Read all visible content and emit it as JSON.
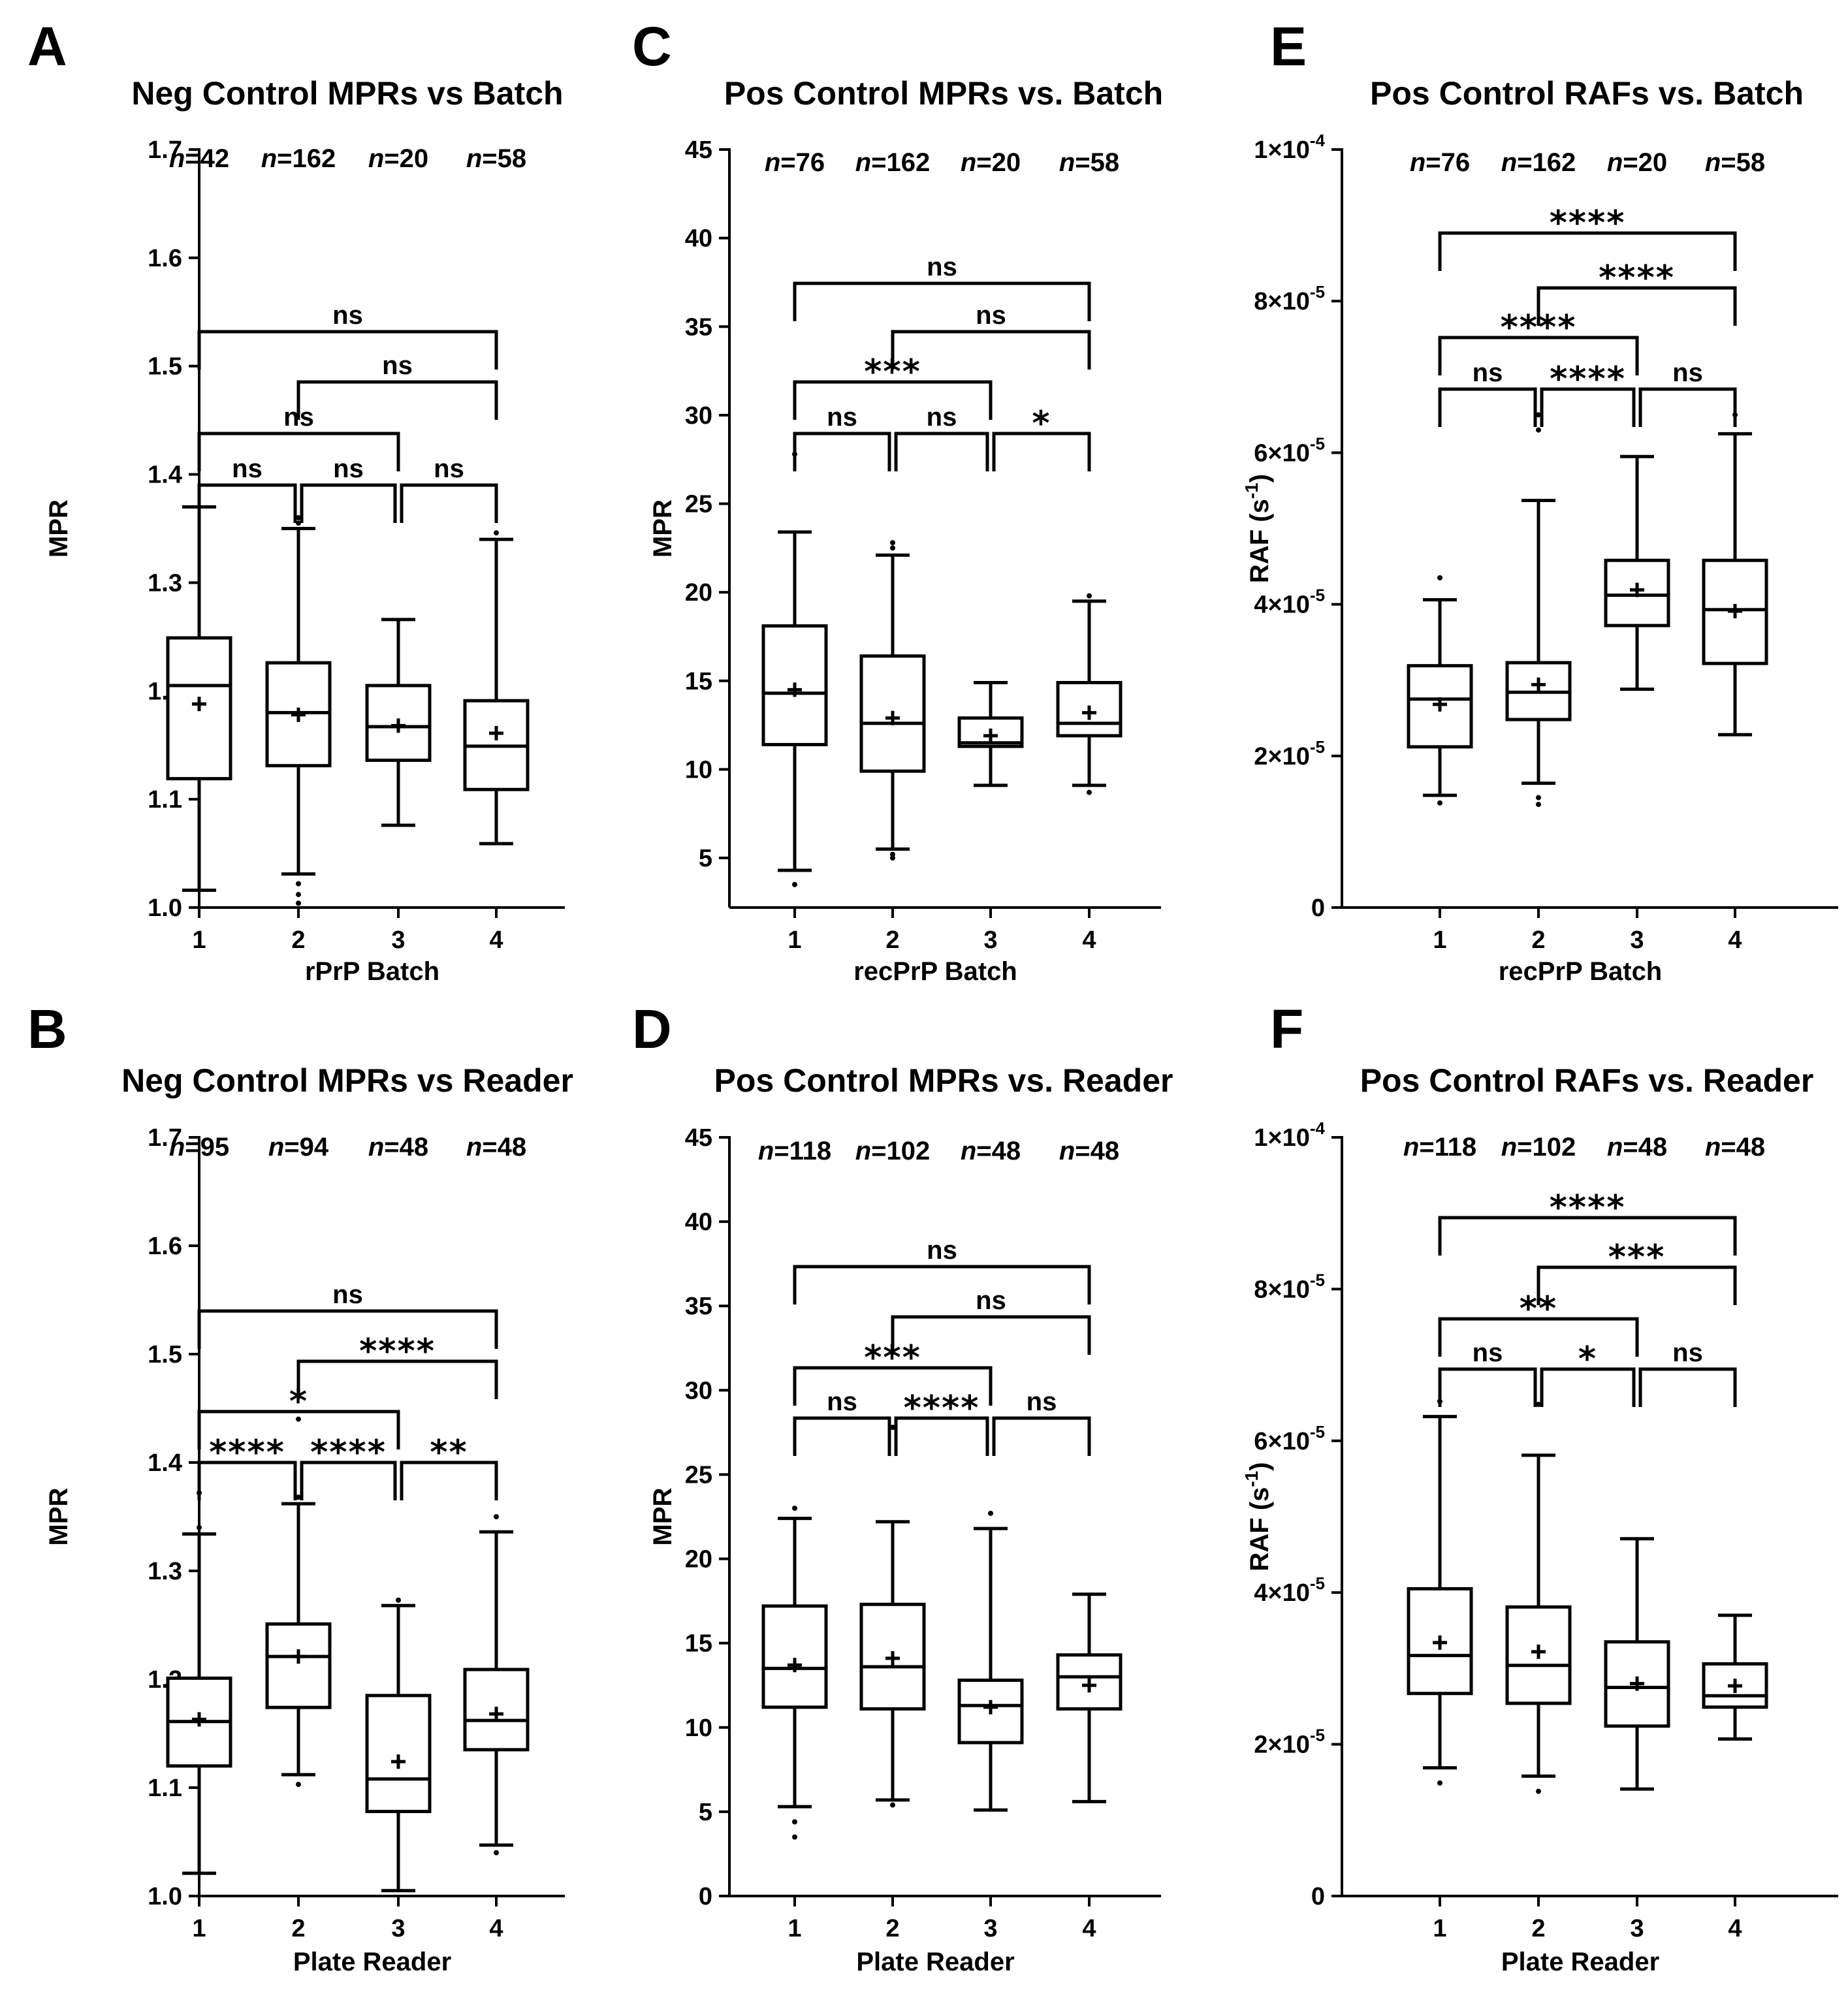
{
  "chart_data": [
    {
      "panel": "A",
      "type": "box",
      "title": "Neg Control MPRs vs Batch",
      "xlabel": "rPrP Batch",
      "ylabel": "MPR",
      "categories": [
        "1",
        "2",
        "3",
        "4"
      ],
      "yticks": [
        {
          "v": 1.0,
          "t": "1.0"
        },
        {
          "v": 1.1,
          "t": "1.1"
        },
        {
          "v": 1.2,
          "t": "1.2"
        },
        {
          "v": 1.3,
          "t": "1.3"
        },
        {
          "v": 1.4,
          "t": "1.4"
        },
        {
          "v": 1.5,
          "t": "1.5"
        },
        {
          "v": 1.6,
          "t": "1.6"
        },
        {
          "v": 1.7,
          "t": "1.7"
        }
      ],
      "ylim": [
        1.0,
        1.7
      ],
      "scale": "linear",
      "n_labels": [
        "42",
        "162",
        "20",
        "58"
      ],
      "boxes": [
        {
          "min": 1.016,
          "q1": 1.119,
          "median": 1.205,
          "q3": 1.249,
          "max": 1.37,
          "mean": 1.188,
          "outliers": []
        },
        {
          "min": 1.031,
          "q1": 1.131,
          "median": 1.18,
          "q3": 1.226,
          "max": 1.35,
          "mean": 1.178,
          "outliers": [
            1.022,
            1.012,
            1.004,
            1.355,
            1.36
          ]
        },
        {
          "min": 1.076,
          "q1": 1.136,
          "median": 1.167,
          "q3": 1.205,
          "max": 1.266,
          "mean": 1.168,
          "outliers": []
        },
        {
          "min": 1.059,
          "q1": 1.109,
          "median": 1.149,
          "q3": 1.191,
          "max": 1.34,
          "mean": 1.161,
          "outliers": [
            1.346
          ]
        }
      ],
      "comparisons": [
        {
          "a": 1,
          "b": 4,
          "label": "ns"
        },
        {
          "a": 2,
          "b": 4,
          "label": "ns"
        },
        {
          "a": 1,
          "b": 3,
          "label": "ns"
        },
        {
          "a": 1,
          "b": 2,
          "label": "ns"
        },
        {
          "a": 2,
          "b": 3,
          "label": "ns"
        },
        {
          "a": 3,
          "b": 4,
          "label": "ns"
        }
      ]
    },
    {
      "panel": "B",
      "type": "box",
      "title": "Neg Control MPRs vs Reader",
      "xlabel": "Plate Reader",
      "ylabel": "MPR",
      "categories": [
        "1",
        "2",
        "3",
        "4"
      ],
      "yticks": [
        {
          "v": 1.0,
          "t": "1.0"
        },
        {
          "v": 1.1,
          "t": "1.1"
        },
        {
          "v": 1.2,
          "t": "1.2"
        },
        {
          "v": 1.3,
          "t": "1.3"
        },
        {
          "v": 1.4,
          "t": "1.4"
        },
        {
          "v": 1.5,
          "t": "1.5"
        },
        {
          "v": 1.6,
          "t": "1.6"
        },
        {
          "v": 1.7,
          "t": "1.7"
        }
      ],
      "ylim": [
        1.0,
        1.7
      ],
      "scale": "linear",
      "n_labels": [
        "95",
        "94",
        "48",
        "48"
      ],
      "boxes": [
        {
          "min": 1.021,
          "q1": 1.12,
          "median": 1.161,
          "q3": 1.201,
          "max": 1.334,
          "mean": 1.163,
          "outliers": [
            1.372,
            1.34
          ]
        },
        {
          "min": 1.112,
          "q1": 1.174,
          "median": 1.221,
          "q3": 1.251,
          "max": 1.362,
          "mean": 1.221,
          "outliers": [
            1.103,
            1.368,
            1.44
          ]
        },
        {
          "min": 1.005,
          "q1": 1.078,
          "median": 1.108,
          "q3": 1.185,
          "max": 1.268,
          "mean": 1.124,
          "outliers": [
            1.273
          ]
        },
        {
          "min": 1.047,
          "q1": 1.135,
          "median": 1.162,
          "q3": 1.209,
          "max": 1.336,
          "mean": 1.168,
          "outliers": [
            1.04,
            1.35
          ]
        }
      ],
      "comparisons": [
        {
          "a": 1,
          "b": 4,
          "label": "ns"
        },
        {
          "a": 2,
          "b": 4,
          "label": "****"
        },
        {
          "a": 1,
          "b": 3,
          "label": "*"
        },
        {
          "a": 1,
          "b": 2,
          "label": "****"
        },
        {
          "a": 2,
          "b": 3,
          "label": "****"
        },
        {
          "a": 3,
          "b": 4,
          "label": "**"
        }
      ]
    },
    {
      "panel": "C",
      "type": "box",
      "title": "Pos Control MPRs vs. Batch",
      "xlabel": "recPrP Batch",
      "ylabel": "MPR",
      "categories": [
        "1",
        "2",
        "3",
        "4"
      ],
      "yticks": [
        {
          "v": 0,
          "t": ""
        },
        {
          "v": 5,
          "t": "5"
        },
        {
          "v": 10,
          "t": "10"
        },
        {
          "v": 15,
          "t": "15"
        },
        {
          "v": 20,
          "t": "20"
        },
        {
          "v": 25,
          "t": "25"
        },
        {
          "v": 30,
          "t": "30"
        },
        {
          "v": 35,
          "t": "35"
        },
        {
          "v": 40,
          "t": "40"
        },
        {
          "v": 45,
          "t": "45"
        }
      ],
      "ylim": [
        2.2,
        45
      ],
      "scale": "linear",
      "n_labels": [
        "76",
        "162",
        "20",
        "58"
      ],
      "boxes": [
        {
          "min": 4.3,
          "q1": 11.4,
          "median": 14.3,
          "q3": 18.1,
          "max": 23.4,
          "mean": 14.5,
          "outliers": [
            3.5,
            27.8
          ]
        },
        {
          "min": 5.5,
          "q1": 9.9,
          "median": 12.6,
          "q3": 16.4,
          "max": 22.1,
          "mean": 12.9,
          "outliers": [
            5.0,
            5.2,
            22.5,
            22.8
          ]
        },
        {
          "min": 9.1,
          "q1": 11.3,
          "median": 11.5,
          "q3": 12.9,
          "max": 14.9,
          "mean": 11.9,
          "outliers": []
        },
        {
          "min": 9.1,
          "q1": 11.9,
          "median": 12.6,
          "q3": 14.9,
          "max": 19.5,
          "mean": 13.2,
          "outliers": [
            8.7,
            19.8
          ]
        }
      ],
      "comparisons": [
        {
          "a": 1,
          "b": 4,
          "label": "ns"
        },
        {
          "a": 2,
          "b": 4,
          "label": "ns"
        },
        {
          "a": 1,
          "b": 3,
          "label": "***"
        },
        {
          "a": 1,
          "b": 2,
          "label": "ns"
        },
        {
          "a": 2,
          "b": 3,
          "label": "ns"
        },
        {
          "a": 3,
          "b": 4,
          "label": "*"
        }
      ]
    },
    {
      "panel": "D",
      "type": "box",
      "title": "Pos Control MPRs vs. Reader",
      "xlabel": "Plate Reader",
      "ylabel": "MPR",
      "categories": [
        "1",
        "2",
        "3",
        "4"
      ],
      "yticks": [
        {
          "v": 0,
          "t": "0"
        },
        {
          "v": 5,
          "t": "5"
        },
        {
          "v": 10,
          "t": "10"
        },
        {
          "v": 15,
          "t": "15"
        },
        {
          "v": 20,
          "t": "20"
        },
        {
          "v": 25,
          "t": "25"
        },
        {
          "v": 30,
          "t": "30"
        },
        {
          "v": 35,
          "t": "35"
        },
        {
          "v": 40,
          "t": "40"
        },
        {
          "v": 45,
          "t": "45"
        }
      ],
      "ylim": [
        0,
        45
      ],
      "scale": "linear",
      "n_labels": [
        "118",
        "102",
        "48",
        "48"
      ],
      "boxes": [
        {
          "min": 5.3,
          "q1": 11.2,
          "median": 13.5,
          "q3": 17.2,
          "max": 22.4,
          "mean": 13.7,
          "outliers": [
            3.5,
            4.4,
            23.0
          ]
        },
        {
          "min": 5.7,
          "q1": 11.1,
          "median": 13.6,
          "q3": 17.3,
          "max": 22.2,
          "mean": 14.1,
          "outliers": [
            5.4,
            27.8
          ]
        },
        {
          "min": 5.1,
          "q1": 9.1,
          "median": 11.3,
          "q3": 12.8,
          "max": 21.8,
          "mean": 11.2,
          "outliers": [
            22.7
          ]
        },
        {
          "min": 5.6,
          "q1": 11.1,
          "median": 13.0,
          "q3": 14.3,
          "max": 17.9,
          "mean": 12.5,
          "outliers": []
        }
      ],
      "comparisons": [
        {
          "a": 1,
          "b": 4,
          "label": "ns"
        },
        {
          "a": 2,
          "b": 4,
          "label": "ns"
        },
        {
          "a": 1,
          "b": 3,
          "label": "***"
        },
        {
          "a": 1,
          "b": 2,
          "label": "ns"
        },
        {
          "a": 2,
          "b": 3,
          "label": "****"
        },
        {
          "a": 3,
          "b": 4,
          "label": "ns"
        }
      ]
    },
    {
      "panel": "E",
      "type": "box",
      "title": "Pos Control RAFs vs. Batch",
      "xlabel": "recPrP Batch",
      "ylabel": "RAF (s-1)",
      "ylabel_base": "RAF (s",
      "ylabel_sup": "-1",
      "ylabel_end": ")",
      "categories": [
        "1",
        "2",
        "3",
        "4"
      ],
      "yticks": [
        {
          "v": 0,
          "t": "0"
        },
        {
          "v": 2,
          "t": "2×10",
          "e": "-5"
        },
        {
          "v": 4,
          "t": "4×10",
          "e": "-5"
        },
        {
          "v": 6,
          "t": "6×10",
          "e": "-5"
        },
        {
          "v": 8,
          "t": "8×10",
          "e": "-5"
        },
        {
          "v": 10,
          "t": "1×10",
          "e": "-4"
        }
      ],
      "y_unit": "1e-5 s^-1",
      "ylim": [
        0,
        10
      ],
      "scale": "linear",
      "n_labels": [
        "76",
        "162",
        "20",
        "58"
      ],
      "boxes": [
        {
          "min": 1.48,
          "q1": 2.12,
          "median": 2.75,
          "q3": 3.19,
          "max": 4.06,
          "mean": 2.68,
          "outliers": [
            1.38,
            4.35
          ]
        },
        {
          "min": 1.64,
          "q1": 2.48,
          "median": 2.84,
          "q3": 3.23,
          "max": 5.37,
          "mean": 2.94,
          "outliers": [
            1.36,
            1.45,
            6.3,
            6.5
          ]
        },
        {
          "min": 2.88,
          "q1": 3.72,
          "median": 4.12,
          "q3": 4.58,
          "max": 5.95,
          "mean": 4.19,
          "outliers": []
        },
        {
          "min": 2.28,
          "q1": 3.22,
          "median": 3.93,
          "q3": 4.58,
          "max": 6.25,
          "mean": 3.91,
          "outliers": [
            6.5
          ]
        }
      ],
      "comparisons": [
        {
          "a": 1,
          "b": 4,
          "label": "****"
        },
        {
          "a": 2,
          "b": 4,
          "label": "****"
        },
        {
          "a": 1,
          "b": 3,
          "label": "****"
        },
        {
          "a": 1,
          "b": 2,
          "label": "ns"
        },
        {
          "a": 2,
          "b": 3,
          "label": "****"
        },
        {
          "a": 3,
          "b": 4,
          "label": "ns"
        }
      ]
    },
    {
      "panel": "F",
      "type": "box",
      "title": "Pos Control RAFs vs. Reader",
      "xlabel": "Plate Reader",
      "ylabel": "RAF (s-1)",
      "ylabel_base": "RAF (s",
      "ylabel_sup": "-1",
      "ylabel_end": ")",
      "categories": [
        "1",
        "2",
        "3",
        "4"
      ],
      "yticks": [
        {
          "v": 0,
          "t": "0"
        },
        {
          "v": 2,
          "t": "2×10",
          "e": "-5"
        },
        {
          "v": 4,
          "t": "4×10",
          "e": "-5"
        },
        {
          "v": 6,
          "t": "6×10",
          "e": "-5"
        },
        {
          "v": 8,
          "t": "8×10",
          "e": "-5"
        },
        {
          "v": 10,
          "t": "1×10",
          "e": "-4"
        }
      ],
      "y_unit": "1e-5 s^-1",
      "ylim": [
        0,
        10
      ],
      "scale": "linear",
      "n_labels": [
        "118",
        "102",
        "48",
        "48"
      ],
      "boxes": [
        {
          "min": 1.69,
          "q1": 2.67,
          "median": 3.17,
          "q3": 4.05,
          "max": 6.32,
          "mean": 3.34,
          "outliers": [
            1.49,
            6.52
          ]
        },
        {
          "min": 1.58,
          "q1": 2.54,
          "median": 3.04,
          "q3": 3.81,
          "max": 5.81,
          "mean": 3.22,
          "outliers": [
            1.38,
            6.48
          ]
        },
        {
          "min": 1.41,
          "q1": 2.24,
          "median": 2.75,
          "q3": 3.35,
          "max": 4.71,
          "mean": 2.8,
          "outliers": []
        },
        {
          "min": 2.07,
          "q1": 2.49,
          "median": 2.64,
          "q3": 3.06,
          "max": 3.7,
          "mean": 2.77,
          "outliers": []
        }
      ],
      "comparisons": [
        {
          "a": 1,
          "b": 4,
          "label": "****"
        },
        {
          "a": 2,
          "b": 4,
          "label": "***"
        },
        {
          "a": 1,
          "b": 3,
          "label": "**"
        },
        {
          "a": 1,
          "b": 2,
          "label": "ns"
        },
        {
          "a": 2,
          "b": 3,
          "label": "*"
        },
        {
          "a": 3,
          "b": 4,
          "label": "ns"
        }
      ]
    }
  ],
  "n_prefix": "n",
  "n_sep": "="
}
